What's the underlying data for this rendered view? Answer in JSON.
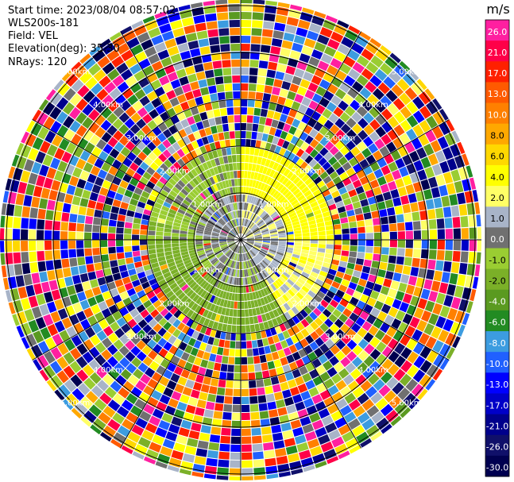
{
  "header": {
    "start_time": "Start time: 2023/08/04 08:57:02",
    "instrument": "WLS200s-181",
    "field": "Field: VEL",
    "elevation": "Elevation(deg): 35.30",
    "nrays": "NRays: 120"
  },
  "chart_data": {
    "type": "heatmap",
    "projection": "polar PPI",
    "nrays": 120,
    "colorbar": {
      "unit": "m/s",
      "ticks": [
        "26.0",
        "21.0",
        "17.0",
        "13.0",
        "10.0",
        "8.0",
        "6.0",
        "4.0",
        "2.0",
        "1.0",
        "0.0",
        "-1.0",
        "-2.0",
        "-4.0",
        "-6.0",
        "-8.0",
        "-10.0",
        "-13.0",
        "-17.0",
        "-21.0",
        "-26.0",
        "-30.0"
      ],
      "colors": [
        "#ff1fa0",
        "#ff0048",
        "#ff2000",
        "#ff5a00",
        "#ff8000",
        "#ffa800",
        "#ffd800",
        "#ffff00",
        "#ffff66",
        "#a8b4c8",
        "#707070",
        "#9acd32",
        "#7bb028",
        "#5a9a20",
        "#228b22",
        "#3c9ce0",
        "#2060ff",
        "#0000ff",
        "#0000c8",
        "#00008c",
        "#10106a",
        "#000050"
      ]
    },
    "range_rings_km": [
      "1.00km",
      "2.00km",
      "3.00km",
      "4.00km",
      "5.00km"
    ],
    "regions": {
      "clear_radius_km": 1.9,
      "description_sectors": [
        {
          "from_deg": 0,
          "to_deg": 90,
          "value_ms": 3.0
        },
        {
          "from_deg": 90,
          "to_deg": 150,
          "value_ms": 1.5
        },
        {
          "from_deg": 150,
          "to_deg": 270,
          "value_ms": -3.0
        },
        {
          "from_deg": 270,
          "to_deg": 360,
          "value_ms": -1.5
        }
      ]
    }
  }
}
